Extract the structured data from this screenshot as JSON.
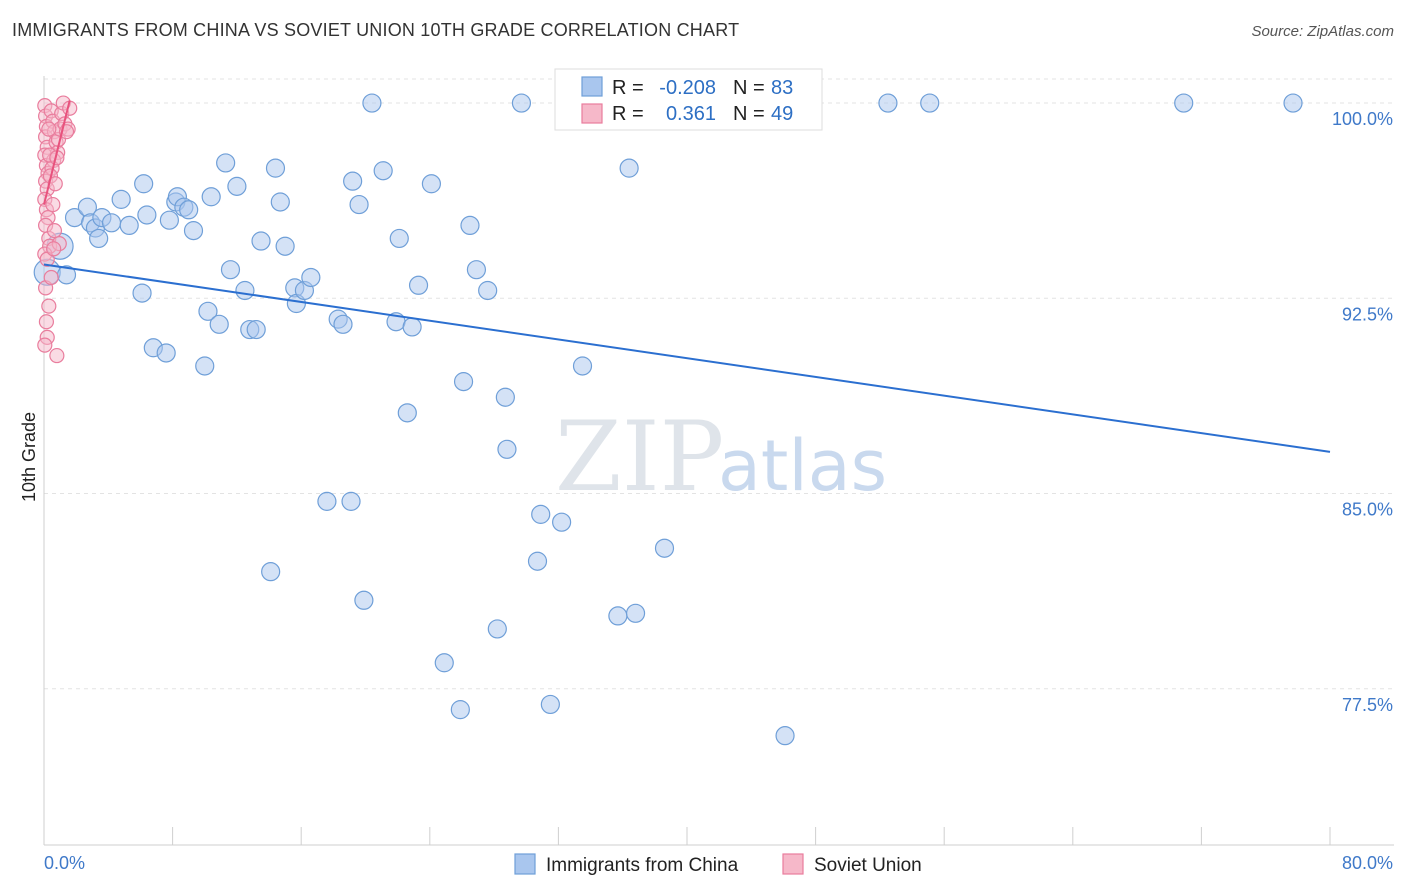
{
  "header": {
    "title": "IMMIGRANTS FROM CHINA VS SOVIET UNION 10TH GRADE CORRELATION CHART",
    "source": "Source: ZipAtlas.com"
  },
  "watermark": {
    "zip": "ZIP",
    "atlas": "atlas"
  },
  "legend": {
    "rows": [
      {
        "r_label": "R =",
        "r_value": "-0.208",
        "n_label": "N =",
        "n_value": "83"
      },
      {
        "r_label": "R =",
        "r_value": "0.361",
        "n_label": "N =",
        "n_value": "49"
      }
    ]
  },
  "bottom_legend": {
    "china": "Immigrants from China",
    "soviet": "Soviet Union"
  },
  "colors": {
    "china_fill": "#a9c6ee",
    "china_stroke": "#6f9fd8",
    "china_line": "#2b6fd0",
    "soviet_fill": "#f6b8c9",
    "soviet_stroke": "#e97d9d",
    "soviet_line": "#e8527d",
    "axis_text": "#3f79c9",
    "grid": "#e3e3e3"
  },
  "chart_data": {
    "type": "scatter",
    "ylabel": "10th Grade",
    "xlim": [
      0,
      80
    ],
    "ylim": [
      71.5,
      101.5
    ],
    "x_tick_labels": [
      "0.0%",
      "80.0%"
    ],
    "y_ticks": [
      {
        "value": 100.0,
        "label": "100.0%"
      },
      {
        "value": 92.5,
        "label": "92.5%"
      },
      {
        "value": 85.0,
        "label": "85.0%"
      },
      {
        "value": 77.5,
        "label": "77.5%"
      }
    ],
    "series": [
      {
        "name": "Immigrants from China",
        "R": -0.208,
        "N": 83,
        "trend": {
          "x": [
            0,
            80
          ],
          "y": [
            93.8,
            86.6
          ]
        },
        "points": [
          [
            0.2,
            93.5
          ],
          [
            1.0,
            94.5
          ],
          [
            1.4,
            93.4
          ],
          [
            1.9,
            95.6
          ],
          [
            2.7,
            96.0
          ],
          [
            2.9,
            95.4
          ],
          [
            3.2,
            95.2
          ],
          [
            3.4,
            94.8
          ],
          [
            3.6,
            95.6
          ],
          [
            4.2,
            95.4
          ],
          [
            4.8,
            96.3
          ],
          [
            5.3,
            95.3
          ],
          [
            6.1,
            92.7
          ],
          [
            6.2,
            96.9
          ],
          [
            6.4,
            95.7
          ],
          [
            6.8,
            90.6
          ],
          [
            7.6,
            90.4
          ],
          [
            7.8,
            95.5
          ],
          [
            8.2,
            96.2
          ],
          [
            8.3,
            96.4
          ],
          [
            8.7,
            96.0
          ],
          [
            9.0,
            95.9
          ],
          [
            9.3,
            95.1
          ],
          [
            10.0,
            89.9
          ],
          [
            10.2,
            92.0
          ],
          [
            10.4,
            96.4
          ],
          [
            10.9,
            91.5
          ],
          [
            11.3,
            97.7
          ],
          [
            11.6,
            93.6
          ],
          [
            12.0,
            96.8
          ],
          [
            12.5,
            92.8
          ],
          [
            12.8,
            91.3
          ],
          [
            13.2,
            91.3
          ],
          [
            13.5,
            94.7
          ],
          [
            14.1,
            82.0
          ],
          [
            14.4,
            97.5
          ],
          [
            14.7,
            96.2
          ],
          [
            15.0,
            94.5
          ],
          [
            15.6,
            92.9
          ],
          [
            15.7,
            92.3
          ],
          [
            16.2,
            92.8
          ],
          [
            16.6,
            93.3
          ],
          [
            17.6,
            84.7
          ],
          [
            18.3,
            91.7
          ],
          [
            18.6,
            91.5
          ],
          [
            19.1,
            84.7
          ],
          [
            19.2,
            97.0
          ],
          [
            19.6,
            96.1
          ],
          [
            19.9,
            80.9
          ],
          [
            20.4,
            100.0
          ],
          [
            21.1,
            97.4
          ],
          [
            21.9,
            91.6
          ],
          [
            22.1,
            94.8
          ],
          [
            22.6,
            88.1
          ],
          [
            22.9,
            91.4
          ],
          [
            23.3,
            93.0
          ],
          [
            24.1,
            96.9
          ],
          [
            24.9,
            78.5
          ],
          [
            25.9,
            76.7
          ],
          [
            26.1,
            89.3
          ],
          [
            26.5,
            95.3
          ],
          [
            26.9,
            93.6
          ],
          [
            27.6,
            92.8
          ],
          [
            28.2,
            79.8
          ],
          [
            28.7,
            88.7
          ],
          [
            28.8,
            86.7
          ],
          [
            29.7,
            100.0
          ],
          [
            30.7,
            82.4
          ],
          [
            30.9,
            84.2
          ],
          [
            31.5,
            76.9
          ],
          [
            32.2,
            83.9
          ],
          [
            33.2,
            100.0
          ],
          [
            33.5,
            89.9
          ],
          [
            35.7,
            80.3
          ],
          [
            36.4,
            97.5
          ],
          [
            36.8,
            80.4
          ],
          [
            38.6,
            82.9
          ],
          [
            40.6,
            100.0
          ],
          [
            46.1,
            75.7
          ],
          [
            52.5,
            100.0
          ],
          [
            55.1,
            100.0
          ],
          [
            70.9,
            100.0
          ],
          [
            77.7,
            100.0
          ]
        ]
      },
      {
        "name": "Soviet Union",
        "R": 0.361,
        "N": 49,
        "trend": {
          "x": [
            0,
            1.6
          ],
          "y": [
            96.1,
            100.1
          ]
        },
        "points": [
          [
            0.05,
            99.9
          ],
          [
            0.1,
            99.5
          ],
          [
            0.15,
            99.1
          ],
          [
            0.1,
            98.7
          ],
          [
            0.2,
            98.3
          ],
          [
            0.05,
            98.0
          ],
          [
            0.15,
            97.6
          ],
          [
            0.25,
            97.3
          ],
          [
            0.1,
            97.0
          ],
          [
            0.2,
            96.7
          ],
          [
            0.05,
            96.3
          ],
          [
            0.15,
            95.9
          ],
          [
            0.25,
            95.6
          ],
          [
            0.1,
            95.3
          ],
          [
            0.3,
            94.8
          ],
          [
            0.35,
            94.5
          ],
          [
            0.05,
            94.2
          ],
          [
            0.1,
            92.9
          ],
          [
            0.3,
            92.2
          ],
          [
            0.15,
            91.6
          ],
          [
            0.2,
            91.0
          ],
          [
            0.05,
            90.7
          ],
          [
            0.8,
            90.3
          ],
          [
            0.45,
            99.7
          ],
          [
            0.55,
            99.3
          ],
          [
            0.65,
            98.9
          ],
          [
            0.75,
            98.5
          ],
          [
            0.85,
            98.1
          ],
          [
            0.6,
            97.8
          ],
          [
            0.5,
            97.5
          ],
          [
            0.4,
            97.2
          ],
          [
            0.7,
            96.9
          ],
          [
            0.9,
            98.6
          ],
          [
            1.0,
            99.0
          ],
          [
            1.1,
            99.6
          ],
          [
            1.2,
            100.0
          ],
          [
            1.3,
            99.2
          ],
          [
            1.5,
            99.0
          ],
          [
            1.6,
            99.8
          ],
          [
            0.95,
            94.6
          ],
          [
            0.55,
            96.1
          ],
          [
            0.35,
            98.0
          ],
          [
            0.3,
            99.0
          ],
          [
            0.65,
            95.1
          ],
          [
            0.8,
            97.9
          ],
          [
            0.2,
            94.0
          ],
          [
            1.4,
            98.9
          ],
          [
            0.45,
            93.3
          ],
          [
            0.6,
            94.4
          ]
        ]
      }
    ]
  }
}
